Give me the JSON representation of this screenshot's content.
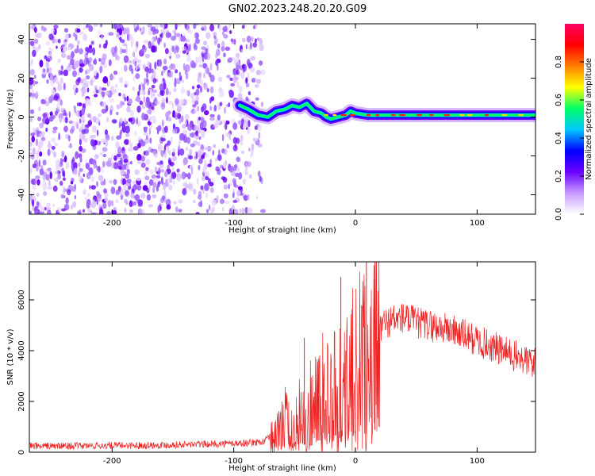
{
  "title": "GN02.2023.248.20.20.G09",
  "chart_data": [
    {
      "type": "heatmap",
      "xlabel": "Height of straight line (km)",
      "ylabel": "Frequency (Hz)",
      "xlim": [
        -268,
        148
      ],
      "ylim": [
        -50,
        48
      ],
      "x_ticks": [
        -200,
        -100,
        0,
        100
      ],
      "y_ticks": [
        -40,
        -20,
        0,
        20,
        40
      ],
      "noise_region_x": [
        -268,
        -82
      ],
      "signal_track": {
        "x": [
          -95,
          -88,
          -80,
          -72,
          -65,
          -58,
          -52,
          -46,
          -40,
          -34,
          -28,
          -24,
          -20,
          -14,
          -8,
          -4,
          0,
          10,
          30,
          60,
          90,
          120,
          148
        ],
        "y": [
          6,
          4,
          1,
          0,
          3,
          4,
          6,
          5,
          7,
          3,
          2,
          0,
          -1,
          0,
          1,
          3,
          2,
          1,
          1,
          1,
          1,
          1,
          1
        ]
      },
      "colorbar": {
        "label": "Normalized spectral amplitude",
        "range": [
          0,
          1
        ],
        "ticks": [
          0.0,
          0.2,
          0.4,
          0.6,
          0.8
        ],
        "colors": [
          "#ffffff",
          "#c89bff",
          "#6a00ff",
          "#0000ff",
          "#00c8ff",
          "#00ff66",
          "#ffff00",
          "#ff7f00",
          "#ff0000",
          "#ff0066"
        ]
      }
    },
    {
      "type": "line",
      "xlabel": "Height of straight line (km)",
      "ylabel": "SNR (10 * v/v)",
      "xlim": [
        -268,
        148
      ],
      "ylim": [
        0,
        7500
      ],
      "x_ticks": [
        -200,
        -100,
        0,
        100
      ],
      "y_ticks": [
        0,
        2000,
        4000,
        6000
      ],
      "series": [
        {
          "color": "#ee2222",
          "x": [
            -268,
            -240,
            -200,
            -160,
            -120,
            -90,
            -75,
            -65,
            -58,
            -52,
            -45,
            -40,
            -35,
            -30,
            -25,
            -20,
            -15,
            -10,
            -5,
            0,
            5,
            10,
            15,
            20,
            25,
            30,
            40,
            50,
            60,
            70,
            80,
            90,
            100,
            110,
            120,
            130,
            140,
            148
          ],
          "y": [
            250,
            240,
            260,
            280,
            320,
            360,
            420,
            800,
            1500,
            900,
            1800,
            1200,
            2600,
            1900,
            2900,
            2200,
            3100,
            2800,
            3400,
            3600,
            4000,
            3500,
            4300,
            4900,
            5100,
            5200,
            5300,
            5100,
            5000,
            4900,
            4800,
            4600,
            4400,
            4200,
            4000,
            3800,
            3600,
            3500
          ]
        }
      ],
      "spikes": [
        {
          "x": -42,
          "y": 4500
        },
        {
          "x": -12,
          "y": 6900
        },
        {
          "x": -8,
          "y": 4000
        },
        {
          "x": 9,
          "y": 7500
        },
        {
          "x": 16,
          "y": 6800
        }
      ]
    }
  ]
}
